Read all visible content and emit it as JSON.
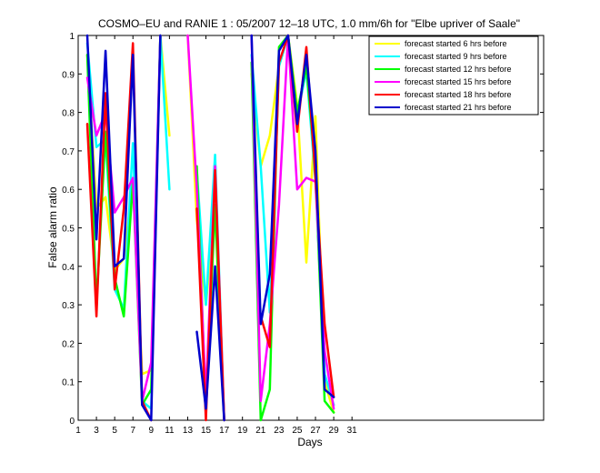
{
  "chart_data": {
    "type": "line",
    "title": "COSMO–EU and RANIE 1 : 05/2007 12–18 UTC, 1.0 mm/6h for \"Elbe upriver of Saale\"",
    "xlabel": "Days",
    "ylabel": "False alarm ratio",
    "xlim": [
      1,
      52
    ],
    "ylim": [
      0,
      1
    ],
    "x_ticks": [
      1,
      3,
      5,
      7,
      9,
      11,
      13,
      15,
      17,
      19,
      21,
      23,
      25,
      27,
      29,
      31
    ],
    "y_ticks": [
      0,
      0.1,
      0.2,
      0.3,
      0.4,
      0.5,
      0.6,
      0.7,
      0.8,
      0.9,
      1
    ],
    "y_tick_labels": [
      "0",
      "0.1",
      "0.2",
      "0.3",
      "0.4",
      "0.5",
      "0.6",
      "0.7",
      "0.8",
      "0.9",
      "1"
    ],
    "legend_position": "top-right",
    "series": [
      {
        "name": "forecast started 6 hrs before",
        "color": "#ffff00",
        "segments": [
          [
            [
              2,
              0.95
            ],
            [
              3,
              0.55
            ],
            [
              4,
              0.58
            ],
            [
              5,
              0.39
            ],
            [
              6,
              0.42
            ],
            [
              7,
              0.62
            ],
            [
              8,
              0.12
            ],
            [
              9,
              0.13
            ],
            [
              10,
              1.0
            ],
            [
              11,
              0.74
            ]
          ],
          [
            [
              13,
              1.0
            ],
            [
              14,
              0.52
            ],
            [
              15,
              0.3
            ],
            [
              16,
              0.55
            ],
            [
              17,
              0.0
            ]
          ],
          [
            [
              20,
              0.9
            ],
            [
              21,
              0.66
            ],
            [
              22,
              0.74
            ],
            [
              23,
              0.92
            ],
            [
              24,
              1.0
            ],
            [
              25,
              0.82
            ],
            [
              26,
              0.41
            ],
            [
              27,
              0.79
            ],
            [
              28,
              0.1
            ],
            [
              29,
              0.02
            ]
          ]
        ]
      },
      {
        "name": "forecast started 9 hrs before",
        "color": "#00ffff",
        "segments": [
          [
            [
              2,
              0.98
            ],
            [
              3,
              0.71
            ],
            [
              4,
              0.73
            ],
            [
              5,
              0.34
            ],
            [
              6,
              0.29
            ],
            [
              7,
              0.72
            ],
            [
              8,
              0.05
            ],
            [
              9,
              0.03
            ],
            [
              10,
              1.0
            ],
            [
              11,
              0.6
            ]
          ],
          [
            [
              14,
              0.65
            ],
            [
              15,
              0.3
            ],
            [
              16,
              0.69
            ],
            [
              17,
              0.0
            ]
          ],
          [
            [
              20,
              0.95
            ],
            [
              21,
              0.66
            ],
            [
              22,
              0.28
            ],
            [
              23,
              0.92
            ],
            [
              24,
              1.0
            ],
            [
              25,
              0.79
            ],
            [
              26,
              0.91
            ],
            [
              27,
              0.62
            ],
            [
              28,
              0.12
            ],
            [
              29,
              0.04
            ]
          ]
        ]
      },
      {
        "name": "forecast started 12 hrs before",
        "color": "#00ff00",
        "segments": [
          [
            [
              2,
              0.95
            ],
            [
              3,
              0.3
            ],
            [
              4,
              0.75
            ],
            [
              5,
              0.37
            ],
            [
              6,
              0.27
            ],
            [
              7,
              0.62
            ],
            [
              8,
              0.04
            ],
            [
              9,
              0.08
            ],
            [
              10,
              1.0
            ]
          ],
          [
            [
              14,
              0.66
            ],
            [
              15,
              0.03
            ],
            [
              16,
              0.56
            ],
            [
              17,
              0.0
            ]
          ],
          [
            [
              20,
              0.93
            ],
            [
              21,
              0.0
            ],
            [
              22,
              0.08
            ],
            [
              23,
              0.97
            ],
            [
              24,
              1.0
            ],
            [
              25,
              0.8
            ],
            [
              26,
              0.92
            ],
            [
              27,
              0.65
            ],
            [
              28,
              0.05
            ],
            [
              29,
              0.02
            ]
          ]
        ]
      },
      {
        "name": "forecast started 15 hrs before",
        "color": "#ff00ff",
        "segments": [
          [
            [
              2,
              0.89
            ],
            [
              3,
              0.74
            ],
            [
              4,
              0.8
            ],
            [
              5,
              0.54
            ],
            [
              6,
              0.58
            ],
            [
              7,
              0.63
            ],
            [
              8,
              0.05
            ],
            [
              9,
              0.15
            ],
            [
              10,
              1.0
            ]
          ],
          [
            [
              13,
              1.0
            ],
            [
              14,
              0.6
            ],
            [
              15,
              0.06
            ],
            [
              16,
              0.66
            ],
            [
              17,
              0.0
            ]
          ],
          [
            [
              20,
              1.0
            ],
            [
              21,
              0.05
            ],
            [
              22,
              0.25
            ],
            [
              23,
              0.56
            ],
            [
              24,
              1.0
            ],
            [
              25,
              0.6
            ],
            [
              26,
              0.63
            ],
            [
              27,
              0.62
            ],
            [
              28,
              0.18
            ],
            [
              29,
              0.03
            ]
          ]
        ]
      },
      {
        "name": "forecast started 18 hrs before",
        "color": "#ff0000",
        "segments": [
          [
            [
              2,
              0.77
            ],
            [
              3,
              0.27
            ],
            [
              4,
              0.85
            ],
            [
              5,
              0.34
            ],
            [
              6,
              0.55
            ],
            [
              7,
              0.98
            ],
            [
              8,
              0.05
            ],
            [
              9,
              0.0
            ]
          ],
          [
            [
              14,
              0.55
            ],
            [
              15,
              0.0
            ],
            [
              16,
              0.65
            ],
            [
              17,
              0.0
            ]
          ],
          [
            [
              21,
              0.27
            ],
            [
              22,
              0.19
            ],
            [
              23,
              0.93
            ],
            [
              24,
              1.0
            ],
            [
              25,
              0.75
            ],
            [
              26,
              0.97
            ],
            [
              27,
              0.63
            ],
            [
              28,
              0.25
            ],
            [
              29,
              0.06
            ]
          ]
        ]
      },
      {
        "name": "forecast started 21 hrs before",
        "color": "#0000cc",
        "segments": [
          [
            [
              2,
              1.0
            ],
            [
              3,
              0.47
            ],
            [
              4,
              0.96
            ],
            [
              5,
              0.4
            ],
            [
              6,
              0.42
            ],
            [
              7,
              0.95
            ],
            [
              8,
              0.04
            ],
            [
              9,
              0.0
            ],
            [
              10,
              1.0
            ]
          ],
          [
            [
              14,
              0.23
            ],
            [
              15,
              0.03
            ],
            [
              16,
              0.4
            ],
            [
              17,
              0.0
            ]
          ],
          [
            [
              20,
              1.0
            ],
            [
              21,
              0.25
            ],
            [
              22,
              0.38
            ],
            [
              23,
              0.96
            ],
            [
              24,
              1.0
            ],
            [
              25,
              0.77
            ],
            [
              26,
              0.95
            ],
            [
              27,
              0.7
            ],
            [
              28,
              0.08
            ],
            [
              29,
              0.06
            ]
          ]
        ]
      }
    ]
  }
}
